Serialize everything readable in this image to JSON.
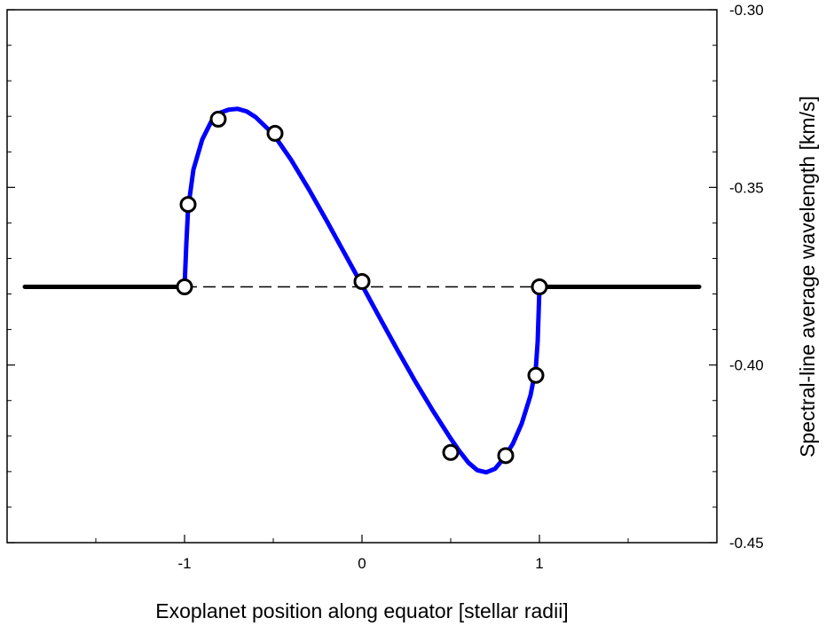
{
  "chart_data": {
    "type": "line",
    "title": "",
    "xlabel": "Exoplanet position along equator [stellar radii]",
    "ylabel": "Spectral-line average wavelength [km/s]",
    "xlim": [
      -2.0,
      2.0
    ],
    "ylim": [
      -0.45,
      -0.3
    ],
    "x_ticks": [
      -1,
      0,
      1
    ],
    "x_tick_labels": [
      "-1",
      "0",
      "1"
    ],
    "y_ticks": [
      -0.3,
      -0.35,
      -0.4,
      -0.45
    ],
    "y_tick_labels": [
      "-0.30",
      "-0.35",
      "-0.40",
      "-0.45"
    ],
    "y_axis_side": "right",
    "grid": false,
    "legend": "none",
    "series": [
      {
        "role": "out-of-transit",
        "style": "solid",
        "color": "#000000",
        "segments": [
          {
            "x": [
              -1.9,
              -1.0
            ],
            "y": [
              -0.378,
              -0.378
            ]
          },
          {
            "x": [
              1.0,
              1.9
            ],
            "y": [
              -0.378,
              -0.378
            ]
          }
        ]
      },
      {
        "role": "baseline-during-transit",
        "style": "dashed",
        "color": "#000000",
        "x": [
          -1.0,
          1.0
        ],
        "y": [
          -0.378,
          -0.378
        ]
      },
      {
        "role": "model-curve",
        "style": "solid",
        "color": "#0000ff",
        "x": [
          -1.0,
          -0.99,
          -0.98,
          -0.95,
          -0.9,
          -0.85,
          -0.8,
          -0.75,
          -0.7,
          -0.65,
          -0.6,
          -0.5,
          -0.4,
          -0.3,
          -0.2,
          -0.1,
          0.0,
          0.1,
          0.2,
          0.3,
          0.4,
          0.5,
          0.55,
          0.6,
          0.65,
          0.7,
          0.75,
          0.8,
          0.85,
          0.9,
          0.95,
          0.98,
          0.99,
          1.0
        ],
        "y": [
          -0.378,
          -0.366,
          -0.356,
          -0.345,
          -0.3365,
          -0.3315,
          -0.329,
          -0.3281,
          -0.3279,
          -0.3286,
          -0.3302,
          -0.335,
          -0.3422,
          -0.3505,
          -0.3593,
          -0.3684,
          -0.3775,
          -0.3867,
          -0.3958,
          -0.4046,
          -0.4129,
          -0.4207,
          -0.4243,
          -0.4275,
          -0.4296,
          -0.4302,
          -0.4292,
          -0.4262,
          -0.4222,
          -0.4165,
          -0.4085,
          -0.4007,
          -0.3935,
          -0.3785
        ]
      },
      {
        "role": "observations",
        "style": "open-circle",
        "color": "#000000",
        "x": [
          -1.0,
          -0.98,
          -0.81,
          -0.49,
          0.0,
          0.5,
          0.81,
          0.98,
          1.0
        ],
        "y": [
          -0.378,
          -0.3548,
          -0.3308,
          -0.3348,
          -0.3765,
          -0.4246,
          -0.4255,
          -0.4029,
          -0.378
        ]
      }
    ]
  }
}
